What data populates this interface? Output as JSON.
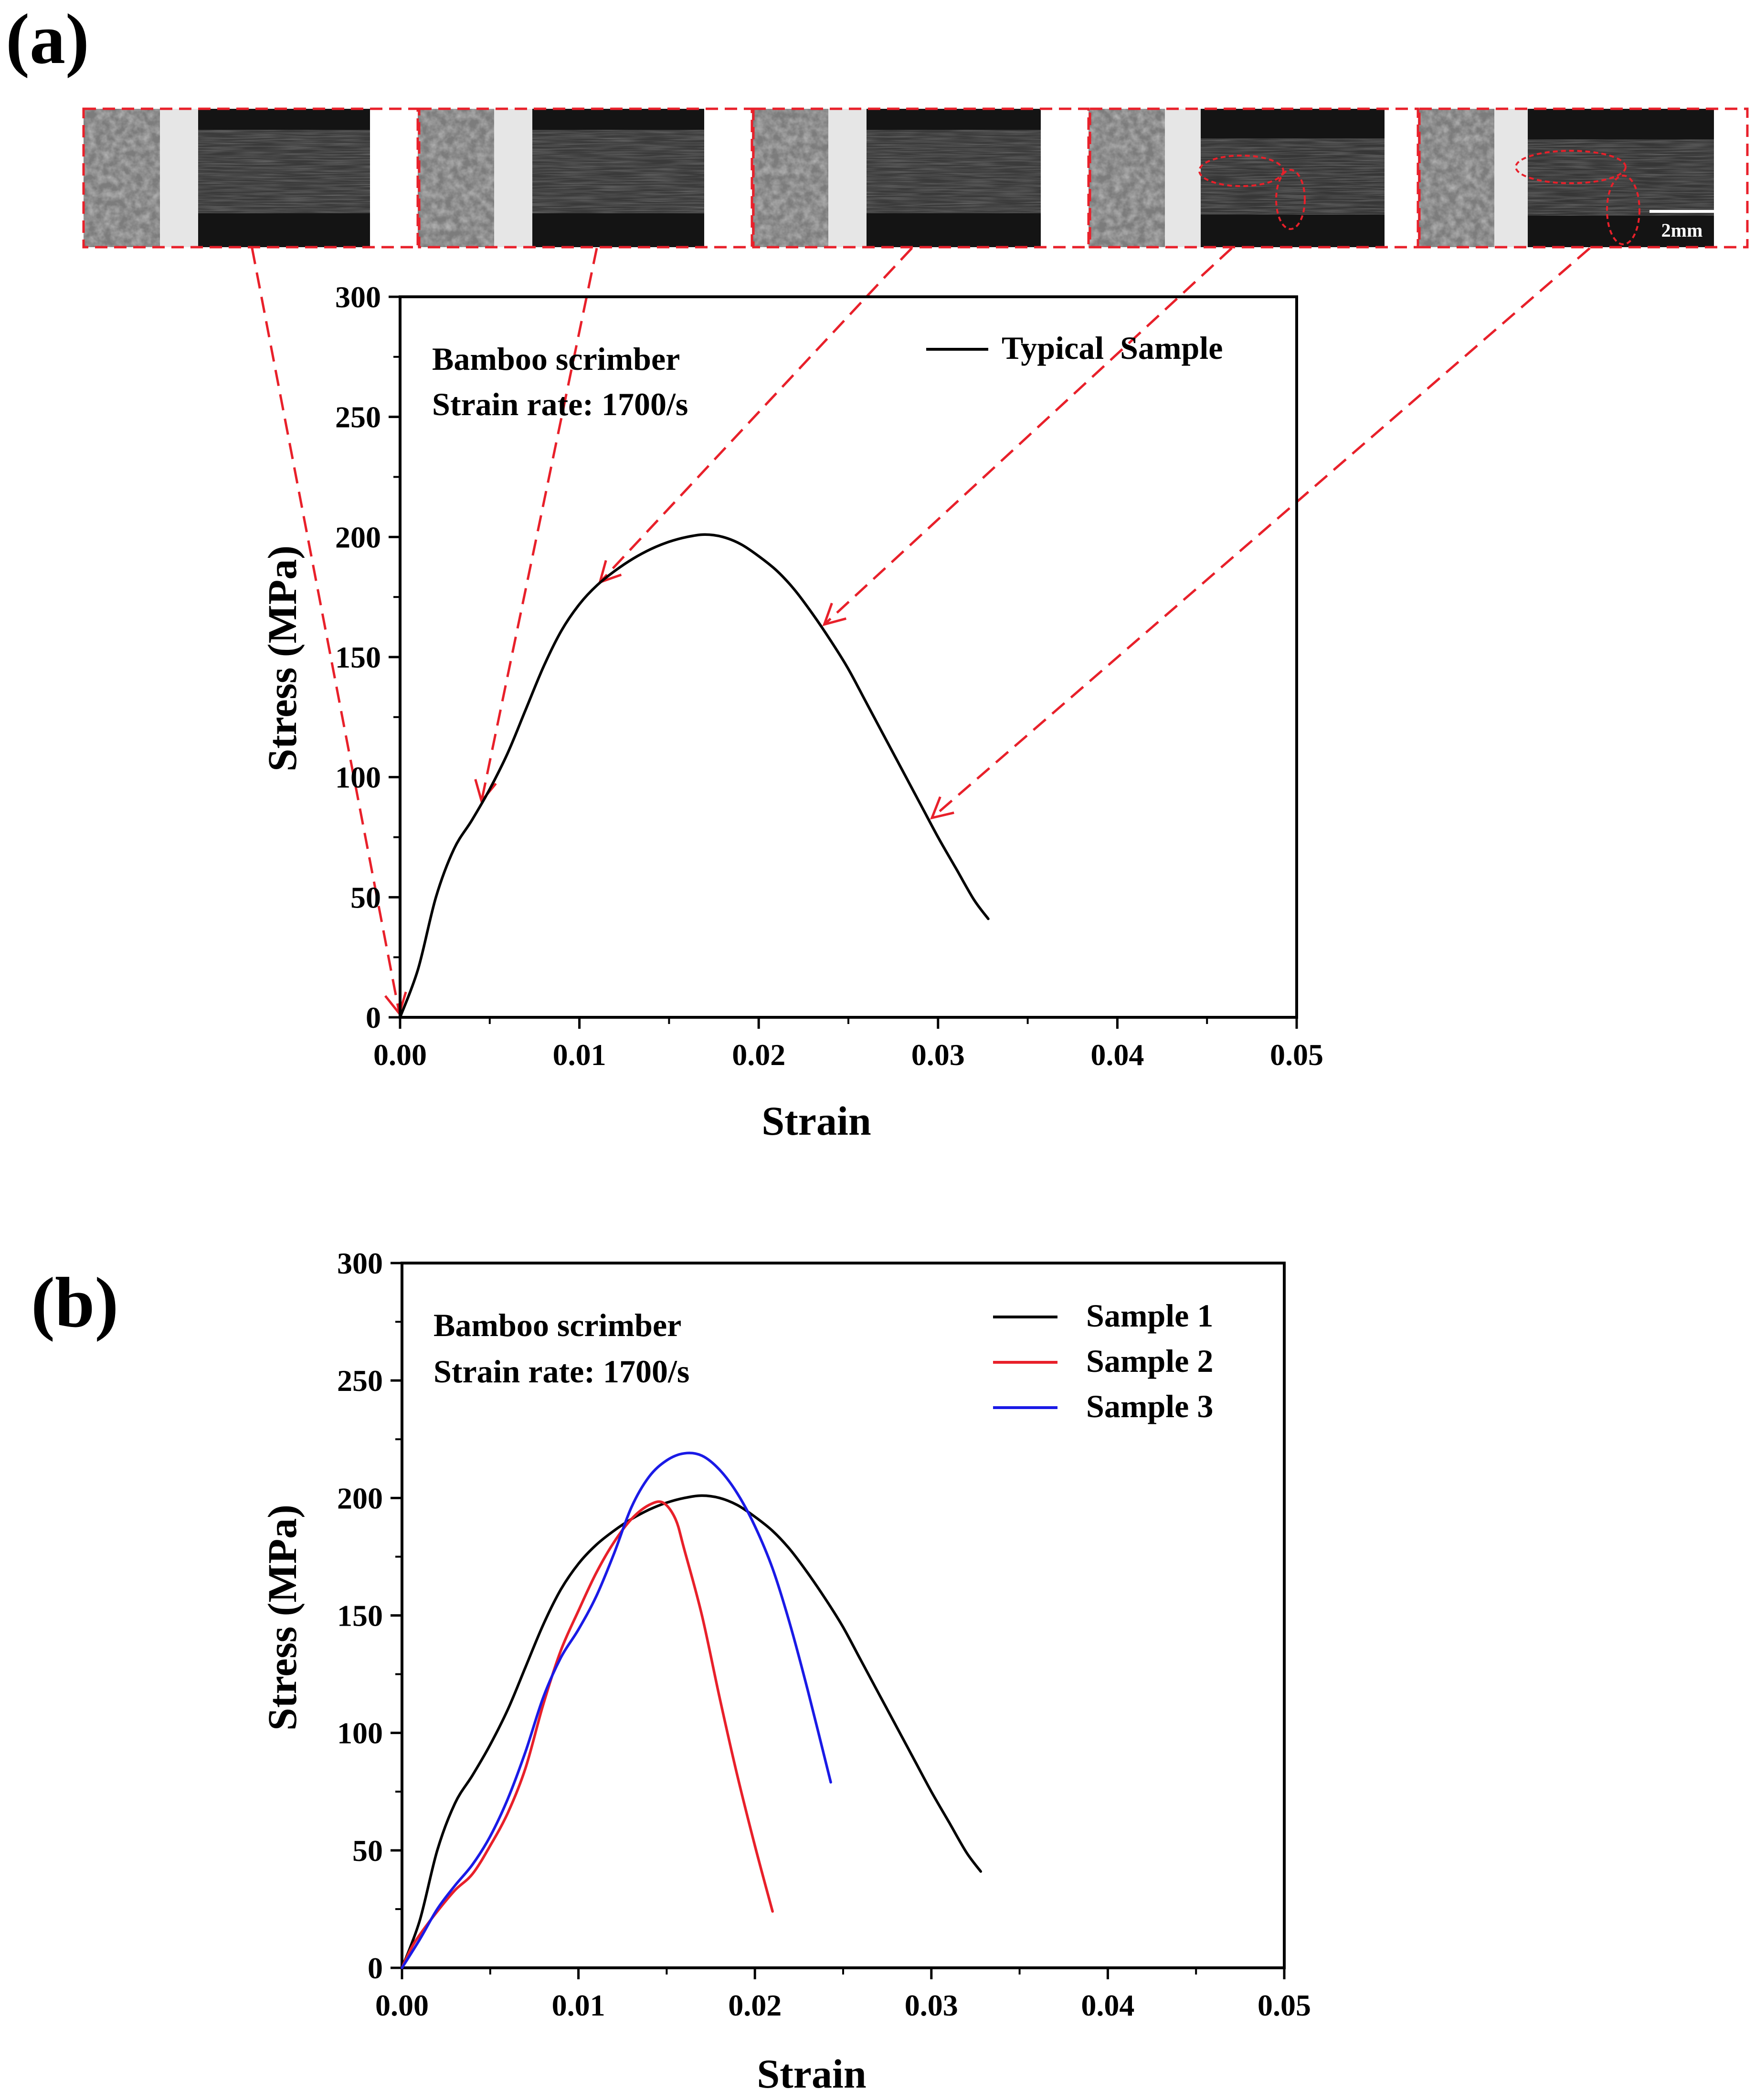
{
  "panel_a": {
    "label": "(a)",
    "scale_bar": "2mm",
    "frame_count": 5,
    "frame_strains": [
      0.0,
      0.0045,
      0.011,
      0.0235,
      0.0295
    ]
  },
  "panel_b": {
    "label": "(b)"
  },
  "colors": {
    "accent_red": "#e8202a",
    "sample_1": "#000000",
    "sample_2": "#e8202a",
    "sample_3": "#1a1ae6"
  },
  "chart_data": [
    {
      "id": "a",
      "type": "line",
      "annotation_line1": "Bamboo scrimber",
      "annotation_line2": "Strain rate: 1700/s",
      "xlabel": "Strain",
      "ylabel": "Stress (MPa)",
      "xlim": [
        0,
        0.05
      ],
      "ylim": [
        0,
        300
      ],
      "xticks": [
        0.0,
        0.01,
        0.02,
        0.03,
        0.04,
        0.05
      ],
      "xtick_labels": [
        "0.00",
        "0.01",
        "0.02",
        "0.03",
        "0.04",
        "0.05"
      ],
      "yticks": [
        0,
        50,
        100,
        150,
        200,
        250,
        300
      ],
      "ytick_labels": [
        "0",
        "50",
        "100",
        "150",
        "200",
        "250",
        "300"
      ],
      "legend_position": "top-right",
      "series": [
        {
          "name": "Typical  Sample",
          "color": "#000000",
          "points": [
            [
              0,
              0
            ],
            [
              0.001,
              20
            ],
            [
              0.002,
              50
            ],
            [
              0.003,
              70
            ],
            [
              0.004,
              82
            ],
            [
              0.005,
              95
            ],
            [
              0.006,
              110
            ],
            [
              0.007,
              128
            ],
            [
              0.008,
              146
            ],
            [
              0.009,
              161
            ],
            [
              0.01,
              172
            ],
            [
              0.011,
              180
            ],
            [
              0.012,
              186
            ],
            [
              0.013,
              191
            ],
            [
              0.014,
              195
            ],
            [
              0.015,
              198
            ],
            [
              0.016,
              200
            ],
            [
              0.017,
              201
            ],
            [
              0.018,
              200
            ],
            [
              0.019,
              197
            ],
            [
              0.02,
              192
            ],
            [
              0.021,
              186
            ],
            [
              0.022,
              178
            ],
            [
              0.023,
              168
            ],
            [
              0.024,
              157
            ],
            [
              0.025,
              145
            ],
            [
              0.026,
              131
            ],
            [
              0.027,
              117
            ],
            [
              0.028,
              103
            ],
            [
              0.029,
              89
            ],
            [
              0.03,
              75
            ],
            [
              0.031,
              62
            ],
            [
              0.032,
              49
            ],
            [
              0.0328,
              41
            ]
          ]
        }
      ]
    },
    {
      "id": "b",
      "type": "line",
      "annotation_line1": "Bamboo scrimber",
      "annotation_line2": "Strain rate: 1700/s",
      "xlabel": "Strain",
      "ylabel": "Stress (MPa)",
      "xlim": [
        0,
        0.05
      ],
      "ylim": [
        0,
        300
      ],
      "xticks": [
        0.0,
        0.01,
        0.02,
        0.03,
        0.04,
        0.05
      ],
      "xtick_labels": [
        "0.00",
        "0.01",
        "0.02",
        "0.03",
        "0.04",
        "0.05"
      ],
      "yticks": [
        0,
        50,
        100,
        150,
        200,
        250,
        300
      ],
      "ytick_labels": [
        "0",
        "50",
        "100",
        "150",
        "200",
        "250",
        "300"
      ],
      "legend_position": "top-right",
      "series": [
        {
          "name": "Sample 1",
          "color": "#000000",
          "points": [
            [
              0,
              0
            ],
            [
              0.001,
              20
            ],
            [
              0.002,
              50
            ],
            [
              0.003,
              70
            ],
            [
              0.004,
              82
            ],
            [
              0.005,
              95
            ],
            [
              0.006,
              110
            ],
            [
              0.007,
              128
            ],
            [
              0.008,
              146
            ],
            [
              0.009,
              161
            ],
            [
              0.01,
              172
            ],
            [
              0.011,
              180
            ],
            [
              0.012,
              186
            ],
            [
              0.013,
              191
            ],
            [
              0.014,
              195
            ],
            [
              0.015,
              198
            ],
            [
              0.016,
              200
            ],
            [
              0.017,
              201
            ],
            [
              0.018,
              200
            ],
            [
              0.019,
              197
            ],
            [
              0.02,
              192
            ],
            [
              0.021,
              186
            ],
            [
              0.022,
              178
            ],
            [
              0.023,
              168
            ],
            [
              0.024,
              157
            ],
            [
              0.025,
              145
            ],
            [
              0.026,
              131
            ],
            [
              0.027,
              117
            ],
            [
              0.028,
              103
            ],
            [
              0.029,
              89
            ],
            [
              0.03,
              75
            ],
            [
              0.031,
              62
            ],
            [
              0.032,
              49
            ],
            [
              0.0328,
              41
            ]
          ]
        },
        {
          "name": "Sample 2",
          "color": "#e8202a",
          "points": [
            [
              0,
              0
            ],
            [
              0.0005,
              8
            ],
            [
              0.001,
              14
            ],
            [
              0.002,
              24
            ],
            [
              0.003,
              33
            ],
            [
              0.004,
              40
            ],
            [
              0.005,
              52
            ],
            [
              0.006,
              66
            ],
            [
              0.007,
              85
            ],
            [
              0.008,
              112
            ],
            [
              0.009,
              135
            ],
            [
              0.01,
              152
            ],
            [
              0.011,
              168
            ],
            [
              0.012,
              181
            ],
            [
              0.013,
              191
            ],
            [
              0.014,
              197
            ],
            [
              0.0148,
              198
            ],
            [
              0.0155,
              191
            ],
            [
              0.016,
              178
            ],
            [
              0.017,
              150
            ],
            [
              0.018,
              115
            ],
            [
              0.019,
              82
            ],
            [
              0.02,
              52
            ],
            [
              0.021,
              24
            ]
          ]
        },
        {
          "name": "Sample 3",
          "color": "#1a1ae6",
          "points": [
            [
              0,
              0
            ],
            [
              0.001,
              12
            ],
            [
              0.002,
              25
            ],
            [
              0.003,
              35
            ],
            [
              0.004,
              44
            ],
            [
              0.005,
              56
            ],
            [
              0.006,
              72
            ],
            [
              0.007,
              92
            ],
            [
              0.008,
              115
            ],
            [
              0.009,
              132
            ],
            [
              0.01,
              144
            ],
            [
              0.011,
              158
            ],
            [
              0.012,
              176
            ],
            [
              0.013,
              196
            ],
            [
              0.014,
              209
            ],
            [
              0.015,
              216
            ],
            [
              0.016,
              219
            ],
            [
              0.017,
              218
            ],
            [
              0.018,
              212
            ],
            [
              0.019,
              202
            ],
            [
              0.02,
              188
            ],
            [
              0.021,
              170
            ],
            [
              0.022,
              146
            ],
            [
              0.023,
              118
            ],
            [
              0.0243,
              79
            ]
          ]
        }
      ]
    }
  ]
}
